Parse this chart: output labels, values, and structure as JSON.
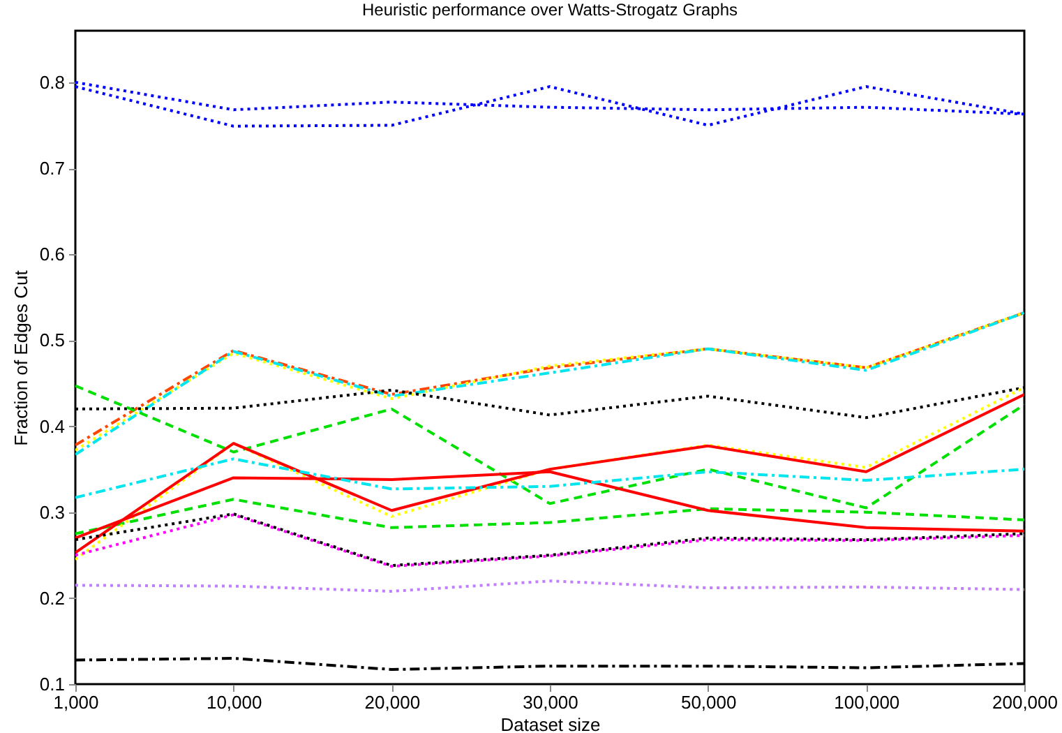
{
  "chart_data": {
    "type": "line",
    "title": "Heuristic performance over Watts-Strogatz Graphs",
    "xlabel": "Dataset size",
    "ylabel": "Fraction of Edges Cut",
    "categories": [
      "1,000",
      "10,000",
      "20,000",
      "30,000",
      "50,000",
      "100,000",
      "200,000"
    ],
    "ylim": [
      0.1,
      0.86
    ],
    "yticks": [
      0.1,
      0.2,
      0.3,
      0.4,
      0.5,
      0.6,
      0.7,
      0.8
    ],
    "grid": false,
    "marker": "none",
    "series": [
      {
        "color": "#0000ff",
        "line_style": "dotted",
        "values": [
          0.8,
          0.768,
          0.777,
          0.771,
          0.768,
          0.771,
          0.763
        ]
      },
      {
        "color": "#0000ff",
        "line_style": "dotted",
        "values": [
          0.795,
          0.749,
          0.75,
          0.795,
          0.75,
          0.795,
          0.763
        ]
      },
      {
        "color": "#ff4500",
        "line_style": "dashdot",
        "values": [
          0.378,
          0.488,
          0.437,
          0.468,
          0.49,
          0.468,
          0.532
        ]
      },
      {
        "color": "#ffff00",
        "line_style": "dotted",
        "values": [
          0.372,
          0.485,
          0.432,
          0.47,
          0.49,
          0.468,
          0.532
        ]
      },
      {
        "color": "#00e5ee",
        "line_style": "dashdot",
        "values": [
          0.367,
          0.487,
          0.435,
          0.462,
          0.49,
          0.465,
          0.532
        ]
      },
      {
        "color": "#000000",
        "line_style": "dotted",
        "values": [
          0.42,
          0.421,
          0.442,
          0.413,
          0.435,
          0.41,
          0.445
        ]
      },
      {
        "color": "#00e000",
        "line_style": "dashed",
        "values": [
          0.447,
          0.37,
          0.42,
          0.31,
          0.35,
          0.305,
          0.425
        ]
      },
      {
        "color": "#00e000",
        "line_style": "dashed",
        "values": [
          0.275,
          0.315,
          0.282,
          0.288,
          0.304,
          0.3,
          0.291
        ]
      },
      {
        "color": "#ffff00",
        "line_style": "dotted",
        "values": [
          0.245,
          0.38,
          0.295,
          0.35,
          0.378,
          0.352,
          0.445
        ]
      },
      {
        "color": "#ff0000",
        "line_style": "solid",
        "values": [
          0.253,
          0.38,
          0.302,
          0.35,
          0.377,
          0.347,
          0.437
        ]
      },
      {
        "color": "#ff0000",
        "line_style": "solid",
        "values": [
          0.27,
          0.34,
          0.338,
          0.347,
          0.302,
          0.282,
          0.278
        ]
      },
      {
        "color": "#00e5ee",
        "line_style": "dashdot",
        "values": [
          0.317,
          0.362,
          0.327,
          0.33,
          0.347,
          0.337,
          0.35
        ]
      },
      {
        "color": "#ff00ff",
        "line_style": "dotted",
        "values": [
          0.25,
          0.297,
          0.237,
          0.249,
          0.268,
          0.267,
          0.273
        ]
      },
      {
        "color": "#000000",
        "line_style": "dotted",
        "values": [
          0.268,
          0.298,
          0.238,
          0.25,
          0.27,
          0.268,
          0.275
        ]
      },
      {
        "color": "#bf7fff",
        "line_style": "dotted",
        "values": [
          0.215,
          0.214,
          0.208,
          0.22,
          0.212,
          0.213,
          0.21
        ]
      },
      {
        "color": "#000000",
        "line_style": "dashdot",
        "values": [
          0.128,
          0.13,
          0.117,
          0.121,
          0.121,
          0.119,
          0.124
        ]
      }
    ]
  }
}
